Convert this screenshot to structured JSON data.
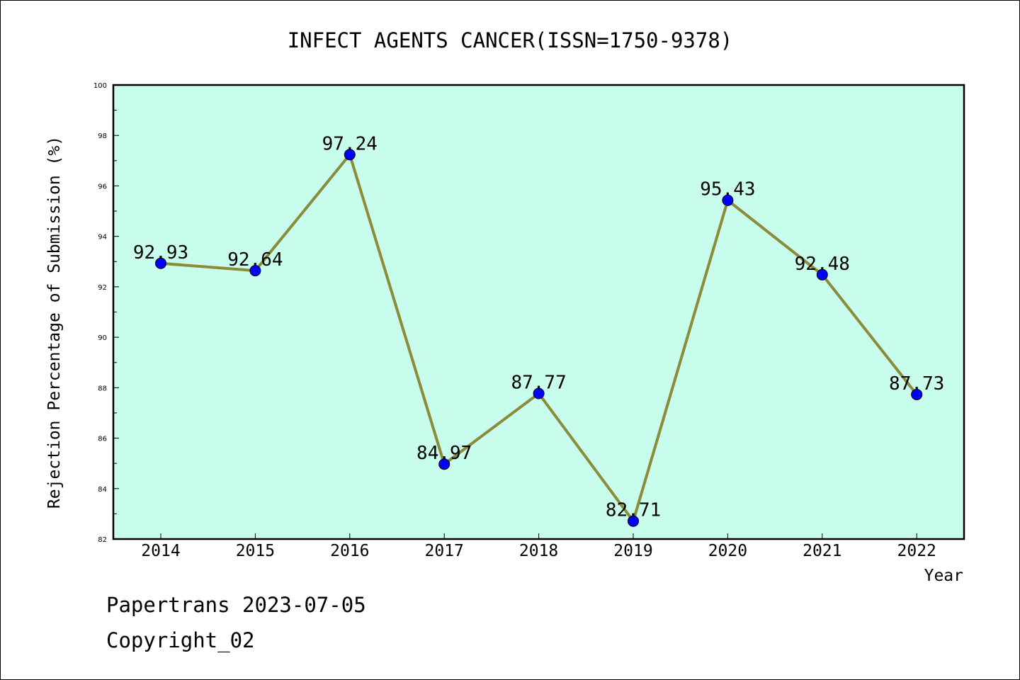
{
  "chart_data": {
    "type": "line",
    "title": "INFECT AGENTS CANCER(ISSN=1750-9378)",
    "xlabel": "Year",
    "ylabel": "Rejection Percentage of Submission (%)",
    "categories": [
      "2014",
      "2015",
      "2016",
      "2017",
      "2018",
      "2019",
      "2020",
      "2021",
      "2022"
    ],
    "series": [
      {
        "values": [
          92.93,
          92.64,
          97.24,
          84.97,
          87.77,
          82.71,
          95.43,
          92.48,
          87.73
        ]
      }
    ],
    "data_labels": [
      "92.93",
      "92.64",
      "97.24",
      "84.97",
      "87.77",
      "82.71",
      "95.43",
      "92.48",
      "87.73"
    ],
    "ylim": [
      82,
      100
    ],
    "yticks": [
      "82",
      "84",
      "86",
      "88",
      "90",
      "92",
      "94",
      "96",
      "98",
      "100"
    ],
    "grid": false,
    "colors": {
      "plot_background": "#c8fcec",
      "line": "#8b8c3a",
      "marker": "#0000ff"
    }
  },
  "footer": {
    "source": "Papertrans 2023-07-05",
    "copyright": "Copyright_02"
  }
}
